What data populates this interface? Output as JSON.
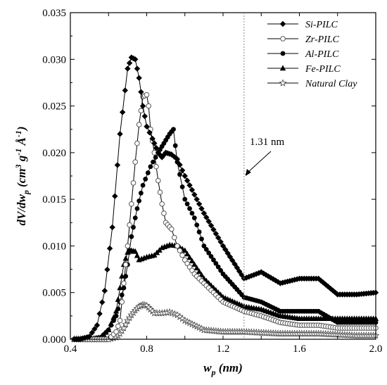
{
  "chart_data": {
    "type": "line",
    "xlabel": "w_p (nm)",
    "ylabel": "dV/dw_p (cm³ g⁻¹ Å⁻¹)",
    "xlim": [
      0.4,
      2.0
    ],
    "ylim": [
      0.0,
      0.035
    ],
    "x_ticks": [
      "0.4",
      "0.8",
      "1.2",
      "1.6",
      "2.0"
    ],
    "y_ticks": [
      "0.000",
      "0.005",
      "0.010",
      "0.015",
      "0.020",
      "0.025",
      "0.030",
      "0.035"
    ],
    "grid": false,
    "legend_position": "top-right",
    "annotation": {
      "text": "1.31 nm",
      "x": 1.31
    },
    "series": [
      {
        "name": "Si-PILC",
        "marker": "diamond",
        "x": [
          0.42,
          0.45,
          0.5,
          0.54,
          0.58,
          0.62,
          0.66,
          0.7,
          0.72,
          0.74,
          0.76,
          0.78,
          0.8,
          0.83,
          0.86,
          0.88,
          0.9,
          0.93,
          0.96,
          1.0,
          1.05,
          1.1,
          1.2,
          1.31,
          1.4,
          1.5,
          1.6,
          1.7,
          1.8,
          1.9,
          2.0
        ],
        "y": [
          0.0,
          0.0,
          0.0003,
          0.0015,
          0.0052,
          0.012,
          0.022,
          0.029,
          0.0302,
          0.03,
          0.028,
          0.025,
          0.0228,
          0.0215,
          0.02,
          0.0195,
          0.02,
          0.0198,
          0.0193,
          0.0175,
          0.0155,
          0.0135,
          0.01,
          0.0065,
          0.0072,
          0.006,
          0.0065,
          0.0065,
          0.0048,
          0.0048,
          0.005
        ]
      },
      {
        "name": "Zr-PILC",
        "marker": "circle-open",
        "x": [
          0.42,
          0.5,
          0.6,
          0.64,
          0.66,
          0.68,
          0.7,
          0.72,
          0.74,
          0.76,
          0.78,
          0.8,
          0.81,
          0.82,
          0.84,
          0.86,
          0.88,
          0.9,
          0.93,
          0.96,
          1.0,
          1.05,
          1.1,
          1.2,
          1.31,
          1.4,
          1.5,
          1.6,
          1.7,
          1.8,
          1.9,
          2.0
        ],
        "y": [
          0.0,
          0.0,
          0.0,
          0.0008,
          0.002,
          0.006,
          0.01,
          0.0145,
          0.019,
          0.023,
          0.026,
          0.0262,
          0.025,
          0.0225,
          0.02,
          0.017,
          0.0145,
          0.0125,
          0.0118,
          0.01,
          0.0085,
          0.007,
          0.006,
          0.004,
          0.003,
          0.0025,
          0.0018,
          0.0015,
          0.0015,
          0.0012,
          0.0012,
          0.0012
        ]
      },
      {
        "name": "Al-PILC",
        "marker": "circle-filled",
        "x": [
          0.42,
          0.5,
          0.56,
          0.6,
          0.64,
          0.66,
          0.68,
          0.7,
          0.72,
          0.75,
          0.78,
          0.82,
          0.86,
          0.89,
          0.92,
          0.94,
          0.96,
          1.0,
          1.05,
          1.1,
          1.2,
          1.31,
          1.4,
          1.5,
          1.6,
          1.7,
          1.8,
          1.9,
          2.0
        ],
        "y": [
          0.0,
          0.0,
          0.0002,
          0.001,
          0.0025,
          0.004,
          0.0055,
          0.008,
          0.011,
          0.014,
          0.0165,
          0.0185,
          0.02,
          0.021,
          0.022,
          0.0225,
          0.019,
          0.015,
          0.013,
          0.01,
          0.007,
          0.0045,
          0.004,
          0.003,
          0.003,
          0.003,
          0.0018,
          0.0018,
          0.0018
        ]
      },
      {
        "name": "Fe-PILC",
        "marker": "triangle",
        "x": [
          0.42,
          0.5,
          0.56,
          0.6,
          0.64,
          0.66,
          0.68,
          0.7,
          0.72,
          0.74,
          0.76,
          0.8,
          0.84,
          0.88,
          0.92,
          0.96,
          1.0,
          1.05,
          1.1,
          1.2,
          1.31,
          1.4,
          1.5,
          1.6,
          1.7,
          1.8,
          1.9,
          2.0
        ],
        "y": [
          0.0,
          0.0,
          0.0002,
          0.001,
          0.003,
          0.0055,
          0.008,
          0.0093,
          0.0095,
          0.0094,
          0.0085,
          0.0088,
          0.009,
          0.0098,
          0.0101,
          0.01,
          0.0095,
          0.008,
          0.0065,
          0.0045,
          0.0035,
          0.0032,
          0.0025,
          0.0022,
          0.0022,
          0.0022,
          0.0022,
          0.0022
        ]
      },
      {
        "name": "Natural Clay",
        "marker": "star-open",
        "x": [
          0.42,
          0.5,
          0.6,
          0.64,
          0.66,
          0.68,
          0.7,
          0.72,
          0.74,
          0.76,
          0.78,
          0.8,
          0.82,
          0.84,
          0.88,
          0.92,
          0.96,
          1.0,
          1.05,
          1.1,
          1.2,
          1.31,
          1.4,
          1.5,
          1.6,
          1.7,
          1.8,
          1.9,
          2.0
        ],
        "y": [
          0.0,
          0.0,
          0.0,
          0.0002,
          0.0006,
          0.0012,
          0.002,
          0.0026,
          0.0031,
          0.0035,
          0.0037,
          0.0036,
          0.0032,
          0.0028,
          0.0028,
          0.0029,
          0.0026,
          0.002,
          0.0015,
          0.001,
          0.0008,
          0.0008,
          0.0007,
          0.0006,
          0.0006,
          0.0006,
          0.0005,
          0.0004,
          0.0004
        ]
      }
    ]
  }
}
